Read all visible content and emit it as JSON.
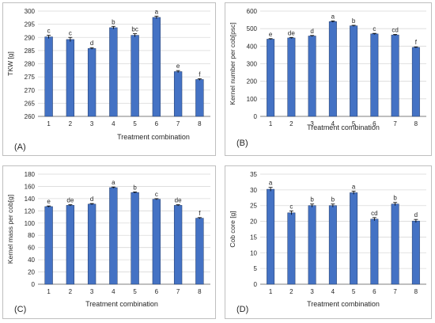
{
  "chart_data": [
    {
      "type": "bar",
      "panel_label": "(A)",
      "xlabel": "Treatment combination",
      "ylabel": "TKW [g]",
      "categories": [
        "1",
        "2",
        "3",
        "4",
        "5",
        "6",
        "7",
        "8"
      ],
      "values": [
        290.2,
        289.2,
        285.8,
        293.7,
        290.8,
        297.6,
        277.0,
        274.0
      ],
      "errors": [
        0.6,
        0.8,
        0.3,
        0.5,
        0.6,
        0.5,
        0.4,
        0.3
      ],
      "letters": [
        "c",
        "c",
        "d",
        "b",
        "bc",
        "a",
        "e",
        "f"
      ],
      "ylim": [
        260,
        300
      ],
      "yticks": [
        260,
        265,
        270,
        275,
        280,
        285,
        290,
        295,
        300
      ],
      "grid": true
    },
    {
      "type": "bar",
      "panel_label": "(B)",
      "xlabel": "Treatment combination",
      "ylabel": "Kernel number per cob[psc]",
      "categories": [
        "1",
        "2",
        "3",
        "4",
        "5",
        "6",
        "7",
        "8"
      ],
      "values": [
        440,
        447,
        458,
        540,
        516,
        470,
        464,
        393
      ],
      "errors": [
        3,
        3,
        3,
        4,
        3,
        3,
        3,
        3
      ],
      "letters": [
        "e",
        "de",
        "d",
        "a",
        "b",
        "c",
        "cd",
        "f"
      ],
      "ylim": [
        0,
        600
      ],
      "yticks": [
        0,
        100,
        200,
        300,
        400,
        500,
        600
      ],
      "grid": true
    },
    {
      "type": "bar",
      "panel_label": "(C)",
      "xlabel": "Treatment combination",
      "ylabel": "Kernel mass per cob[g]",
      "categories": [
        "1",
        "2",
        "3",
        "4",
        "5",
        "6",
        "7",
        "8"
      ],
      "values": [
        127,
        129,
        131,
        158,
        150,
        139,
        129,
        108
      ],
      "errors": [
        1,
        1,
        1,
        1,
        1,
        1,
        1,
        1
      ],
      "letters": [
        "e",
        "de",
        "d",
        "a",
        "b",
        "c",
        "de",
        "f"
      ],
      "ylim": [
        0,
        180
      ],
      "yticks": [
        0,
        20,
        40,
        60,
        80,
        100,
        120,
        140,
        160,
        180
      ],
      "grid": true
    },
    {
      "type": "bar",
      "panel_label": "(D)",
      "xlabel": "Treatment combination",
      "ylabel": "Cob core [g]",
      "categories": [
        "1",
        "2",
        "3",
        "4",
        "5",
        "6",
        "7",
        "8"
      ],
      "values": [
        30.2,
        22.7,
        25.0,
        25.0,
        29.1,
        20.7,
        25.5,
        20.1
      ],
      "errors": [
        0.6,
        0.6,
        0.5,
        0.5,
        0.5,
        0.5,
        0.5,
        0.5
      ],
      "letters": [
        "a",
        "c",
        "b",
        "b",
        "a",
        "cd",
        "b",
        "d"
      ],
      "ylim": [
        0,
        35
      ],
      "yticks": [
        0,
        5,
        10,
        15,
        20,
        25,
        30,
        35
      ],
      "grid": true
    }
  ],
  "colors": {
    "bar": "#4472c4",
    "bar_edge": "#203864",
    "grid": "#d9d9d9",
    "axis": "#7f7f7f",
    "text": "#262626"
  }
}
